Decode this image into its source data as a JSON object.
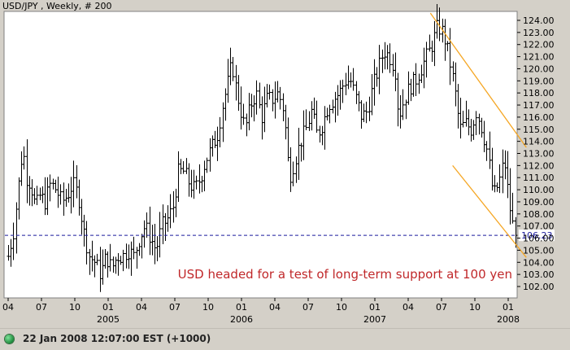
{
  "title": "USD/JPY , Weekly, # 200",
  "annotation": "USD headed for a test of long-term support at 100 yen",
  "status": "22 Jan 2008 12:07:00  EST (+1000)",
  "colors": {
    "background": "#ffffff",
    "frame": "#d4d0c8",
    "bars": "#000000",
    "channel": "#f5a623",
    "reference_line": "#1a1a9c",
    "annotation": "#c0282a",
    "status_indicator": "#1c8a3a"
  },
  "chart_data": {
    "type": "ohlc-bar",
    "title": "USD/JPY , Weekly, # 200",
    "xlabel": "",
    "ylabel": "",
    "ylim": [
      101.4,
      124.6
    ],
    "y_ticks": [
      102,
      103,
      104,
      105,
      106,
      107,
      108,
      109,
      110,
      111,
      112,
      113,
      114,
      115,
      116,
      117,
      118,
      119,
      120,
      121,
      122,
      123,
      124
    ],
    "y_tick_labels": [
      "102.00",
      "103.00",
      "104.00",
      "105.00",
      "106.00",
      "107.00",
      "108.00",
      "109.00",
      "110.00",
      "111.00",
      "112.00",
      "113.00",
      "114.00",
      "115.00",
      "116.00",
      "117.00",
      "118.00",
      "119.00",
      "120.00",
      "121.00",
      "122.00",
      "123.00",
      "124.00"
    ],
    "x_range": [
      "2004-04",
      "2008-01"
    ],
    "x_ticks": [
      {
        "label": "04",
        "date": "2004-04"
      },
      {
        "label": "07",
        "date": "2004-07"
      },
      {
        "label": "10",
        "date": "2004-10"
      },
      {
        "label": "01",
        "date": "2005-01"
      },
      {
        "label": "04",
        "date": "2005-04"
      },
      {
        "label": "07",
        "date": "2005-07"
      },
      {
        "label": "10",
        "date": "2005-10"
      },
      {
        "label": "01",
        "date": "2006-01"
      },
      {
        "label": "04",
        "date": "2006-04"
      },
      {
        "label": "07",
        "date": "2006-07"
      },
      {
        "label": "10",
        "date": "2006-10"
      },
      {
        "label": "01",
        "date": "2007-01"
      },
      {
        "label": "04",
        "date": "2007-04"
      },
      {
        "label": "07",
        "date": "2007-07"
      },
      {
        "label": "10",
        "date": "2007-10"
      },
      {
        "label": "01",
        "date": "2008-01"
      }
    ],
    "year_labels": [
      {
        "label": "2005",
        "date": "2005-01"
      },
      {
        "label": "2006",
        "date": "2006-01"
      },
      {
        "label": "2007",
        "date": "2007-01"
      },
      {
        "label": "2008",
        "date": "2008-01"
      }
    ],
    "last_value": 106.23,
    "last_value_label": "106.23",
    "reference_line": {
      "value": 106.23,
      "style": "dashed"
    },
    "channel_lines": [
      {
        "from": {
          "date": "2007-06",
          "value": 124.6
        },
        "to": {
          "date": "2008-01",
          "value": 113.5
        }
      },
      {
        "from": {
          "date": "2007-08",
          "value": 112.0
        },
        "to": {
          "date": "2008-01",
          "value": 104.4
        }
      }
    ],
    "grid": false,
    "legend": "none",
    "series": [
      {
        "style": "ohlc",
        "path": [
          [
            "2004-04-01",
            104.5
          ],
          [
            "2004-04-15",
            106.5
          ],
          [
            "2004-05-01",
            111
          ],
          [
            "2004-05-10",
            113.5
          ],
          [
            "2004-05-20",
            111
          ],
          [
            "2004-06-01",
            110.5
          ],
          [
            "2004-06-15",
            108.5
          ],
          [
            "2004-06-25",
            109.5
          ],
          [
            "2004-07-10",
            109
          ],
          [
            "2004-07-25",
            110.5
          ],
          [
            "2004-08-10",
            110
          ],
          [
            "2004-08-25",
            109
          ],
          [
            "2004-09-10",
            109.5
          ],
          [
            "2004-09-25",
            110.5
          ],
          [
            "2004-10-10",
            109.5
          ],
          [
            "2004-10-25",
            106.5
          ],
          [
            "2004-11-10",
            104.5
          ],
          [
            "2004-11-25",
            104
          ],
          [
            "2004-12-10",
            103
          ],
          [
            "2004-12-25",
            104.5
          ],
          [
            "2005-01-10",
            103.5
          ],
          [
            "2005-01-25",
            104.5
          ],
          [
            "2005-02-10",
            104.5
          ],
          [
            "2005-02-25",
            105
          ],
          [
            "2005-03-10",
            104.5
          ],
          [
            "2005-03-25",
            106
          ],
          [
            "2005-04-10",
            107
          ],
          [
            "2005-04-25",
            106
          ],
          [
            "2005-05-10",
            105
          ],
          [
            "2005-05-25",
            107
          ],
          [
            "2005-06-10",
            107.5
          ],
          [
            "2005-06-25",
            108.5
          ],
          [
            "2005-07-10",
            111.5
          ],
          [
            "2005-07-25",
            111.5
          ],
          [
            "2005-08-10",
            110.5
          ],
          [
            "2005-08-25",
            110
          ],
          [
            "2005-09-10",
            111
          ],
          [
            "2005-09-25",
            112.5
          ],
          [
            "2005-10-10",
            113.5
          ],
          [
            "2005-10-25",
            114.5
          ],
          [
            "2005-11-10",
            117
          ],
          [
            "2005-11-25",
            119
          ],
          [
            "2005-12-05",
            120.5
          ],
          [
            "2005-12-15",
            118.5
          ],
          [
            "2005-12-25",
            117
          ],
          [
            "2006-01-10",
            115
          ],
          [
            "2006-01-25",
            117
          ],
          [
            "2006-02-10",
            118
          ],
          [
            "2006-02-25",
            116
          ],
          [
            "2006-03-10",
            117.5
          ],
          [
            "2006-03-25",
            117.5
          ],
          [
            "2006-04-10",
            118
          ],
          [
            "2006-04-25",
            116.5
          ],
          [
            "2006-05-10",
            111
          ],
          [
            "2006-05-25",
            112.5
          ],
          [
            "2006-06-10",
            114
          ],
          [
            "2006-06-25",
            115
          ],
          [
            "2006-07-10",
            116.5
          ],
          [
            "2006-07-25",
            114.5
          ],
          [
            "2006-08-10",
            115.5
          ],
          [
            "2006-08-25",
            117
          ],
          [
            "2006-09-10",
            117.5
          ],
          [
            "2006-09-25",
            118
          ],
          [
            "2006-10-10",
            119
          ],
          [
            "2006-10-25",
            119
          ],
          [
            "2006-11-10",
            117.5
          ],
          [
            "2006-11-25",
            116
          ],
          [
            "2006-12-10",
            116.5
          ],
          [
            "2006-12-25",
            118.5
          ],
          [
            "2007-01-10",
            120
          ],
          [
            "2007-01-25",
            121.5
          ],
          [
            "2007-02-10",
            121
          ],
          [
            "2007-02-25",
            120
          ],
          [
            "2007-03-05",
            116
          ],
          [
            "2007-03-20",
            117.5
          ],
          [
            "2007-04-05",
            118.5
          ],
          [
            "2007-04-20",
            119
          ],
          [
            "2007-05-05",
            120
          ],
          [
            "2007-05-20",
            121
          ],
          [
            "2007-06-05",
            122
          ],
          [
            "2007-06-20",
            123.5
          ],
          [
            "2007-07-05",
            123
          ],
          [
            "2007-07-20",
            121
          ],
          [
            "2007-08-05",
            118.5
          ],
          [
            "2007-08-20",
            115
          ],
          [
            "2007-09-05",
            115.5
          ],
          [
            "2007-09-20",
            115
          ],
          [
            "2007-10-05",
            116.5
          ],
          [
            "2007-10-20",
            115
          ],
          [
            "2007-11-05",
            113
          ],
          [
            "2007-11-20",
            109.5
          ],
          [
            "2007-12-05",
            110.5
          ],
          [
            "2007-12-20",
            112.5
          ],
          [
            "2008-01-01",
            109.5
          ],
          [
            "2008-01-10",
            107.5
          ],
          [
            "2008-01-20",
            106.23
          ]
        ]
      }
    ]
  }
}
